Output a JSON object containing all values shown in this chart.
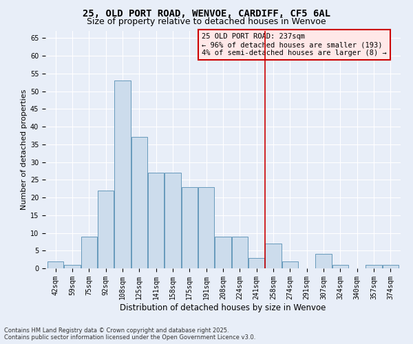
{
  "title": "25, OLD PORT ROAD, WENVOE, CARDIFF, CF5 6AL",
  "subtitle": "Size of property relative to detached houses in Wenvoe",
  "xlabel": "Distribution of detached houses by size in Wenvoe",
  "ylabel": "Number of detached properties",
  "categories": [
    "42sqm",
    "59sqm",
    "75sqm",
    "92sqm",
    "108sqm",
    "125sqm",
    "141sqm",
    "158sqm",
    "175sqm",
    "191sqm",
    "208sqm",
    "224sqm",
    "241sqm",
    "258sqm",
    "274sqm",
    "291sqm",
    "307sqm",
    "324sqm",
    "340sqm",
    "357sqm",
    "374sqm"
  ],
  "values": [
    2,
    1,
    9,
    22,
    53,
    37,
    27,
    27,
    23,
    23,
    9,
    9,
    3,
    7,
    2,
    0,
    4,
    1,
    0,
    1,
    1
  ],
  "bar_color": "#ccdcec",
  "bar_edge_color": "#6699bb",
  "vline_color": "#cc0000",
  "annotation_text": "25 OLD PORT ROAD: 237sqm\n← 96% of detached houses are smaller (193)\n4% of semi-detached houses are larger (8) →",
  "annotation_box_color": "#ffe8e8",
  "annotation_border_color": "#cc0000",
  "ylim": [
    0,
    67
  ],
  "yticks": [
    0,
    5,
    10,
    15,
    20,
    25,
    30,
    35,
    40,
    45,
    50,
    55,
    60,
    65
  ],
  "background_color": "#e8eef8",
  "grid_color": "#ffffff",
  "footer": "Contains HM Land Registry data © Crown copyright and database right 2025.\nContains public sector information licensed under the Open Government Licence v3.0.",
  "title_fontsize": 10,
  "subtitle_fontsize": 9,
  "xlabel_fontsize": 8.5,
  "ylabel_fontsize": 8,
  "tick_fontsize": 7,
  "annotation_fontsize": 7.5,
  "footer_fontsize": 6
}
